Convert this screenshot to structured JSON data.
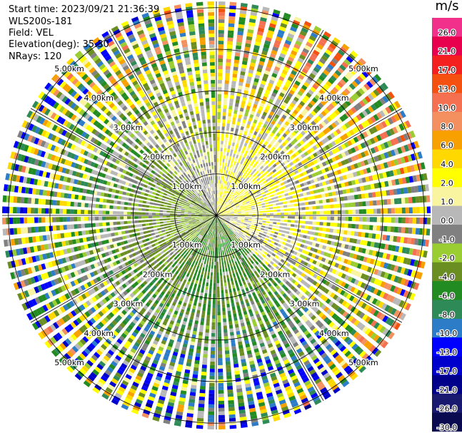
{
  "header": {
    "start_time": "Start time: 2023/09/21 21:36:39",
    "instrument": "WLS200s-181",
    "field": "Field: VEL",
    "elevation": "Elevation(deg): 35.30",
    "nrays": "NRays: 120"
  },
  "colorbar": {
    "unit": "m/s",
    "levels": [
      "26.0",
      "21.0",
      "17.0",
      "13.0",
      "10.0",
      "8.0",
      "6.0",
      "4.0",
      "2.0",
      "1.0",
      "0.0",
      "-1.0",
      "-2.0",
      "-4.0",
      "-6.0",
      "-8.0",
      "-10.0",
      "-13.0",
      "-17.0",
      "-21.0",
      "-26.0",
      "-30.0"
    ],
    "colors": [
      "#f0308a",
      "#e8004e",
      "#f42020",
      "#f45010",
      "#f47050",
      "#f49060",
      "#f8a000",
      "#ffd800",
      "#ffff00",
      "#f8f4a0",
      "#b8b8b8",
      "#808080",
      "#9acd32",
      "#6b8e23",
      "#228b22",
      "#2e8b57",
      "#2c7cc8",
      "#0000ff",
      "#0000cd",
      "#00008b",
      "#191970",
      "#0a0a50"
    ]
  },
  "chart_data": {
    "type": "ppi",
    "field": "VEL",
    "n_rays": 120,
    "range_rings_km": [
      1.0,
      2.0,
      3.0,
      4.0,
      5.0
    ],
    "ring_labels": [
      "1.00km",
      "2.00km",
      "3.00km",
      "4.00km",
      "5.00km"
    ],
    "spokes_deg": [
      0,
      30,
      60,
      90,
      120,
      150,
      180,
      210,
      240,
      270,
      300,
      330
    ],
    "max_range_km": 5.15,
    "sectors": [
      {
        "azimuth_deg": [
          0,
          90
        ],
        "dominant_velocity_ms": 2.0
      },
      {
        "azimuth_deg": [
          90,
          135
        ],
        "dominant_velocity_ms": 1.0
      },
      {
        "azimuth_deg": [
          135,
          225
        ],
        "dominant_velocity_ms": -4.0
      },
      {
        "azimuth_deg": [
          225,
          315
        ],
        "dominant_velocity_ms": -2.0
      },
      {
        "azimuth_deg": [
          315,
          360
        ],
        "dominant_velocity_ms": 0.0
      }
    ]
  }
}
